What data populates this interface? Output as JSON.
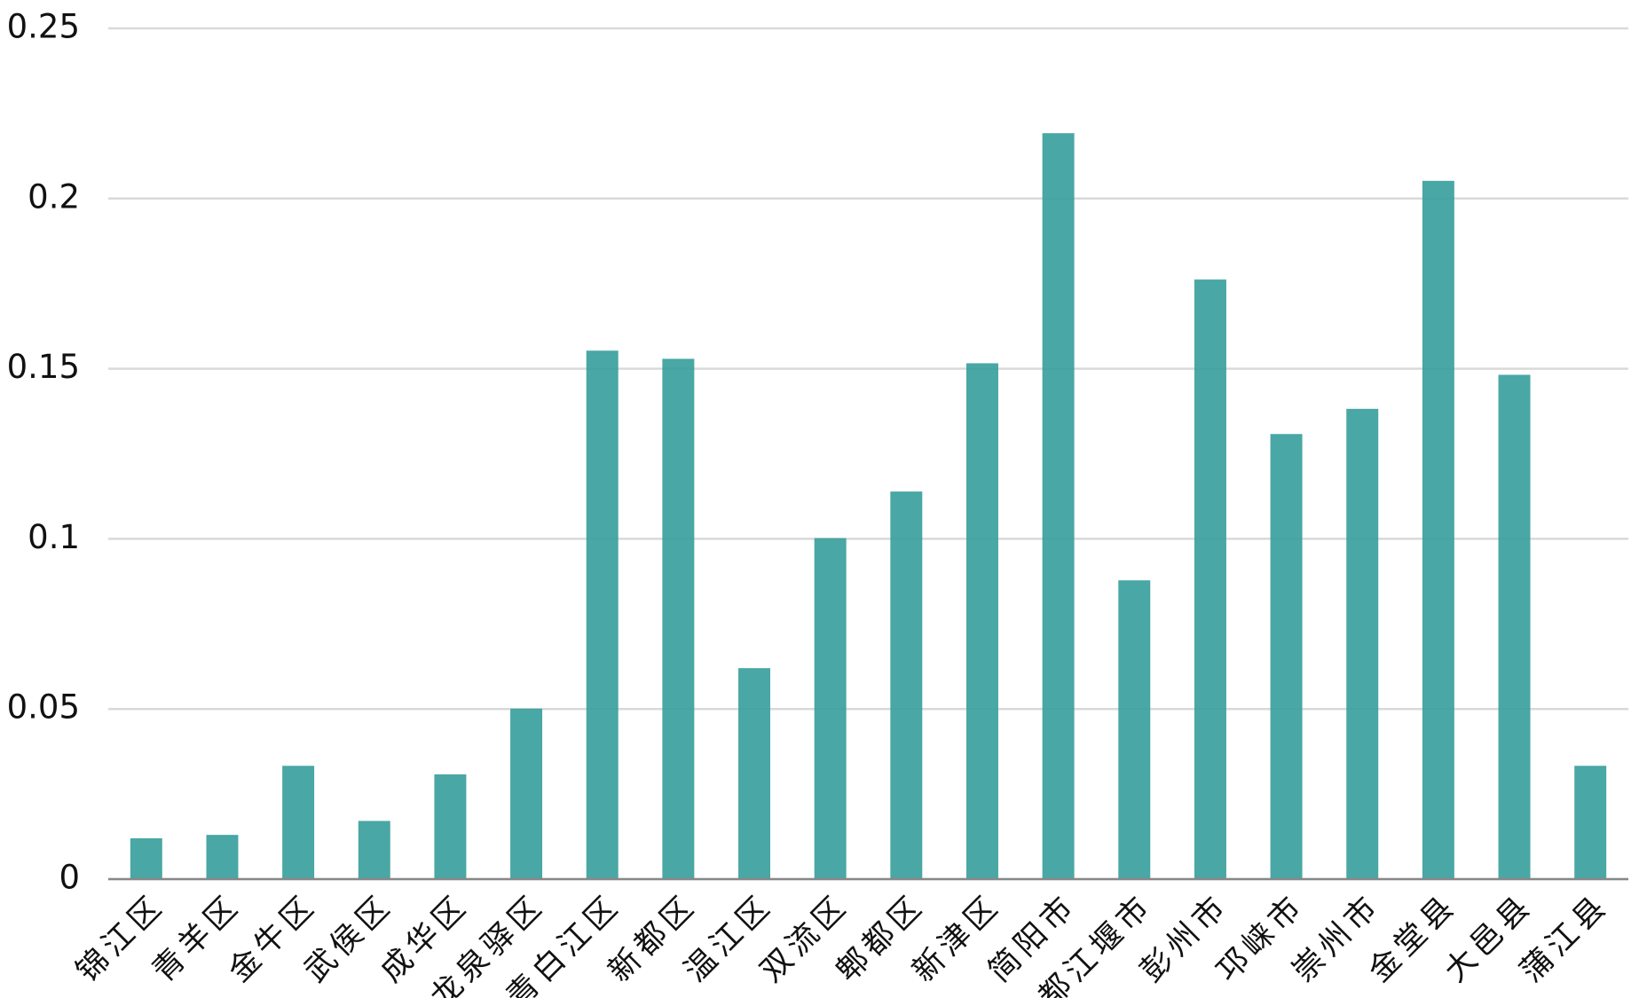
{
  "chart_data": {
    "type": "bar",
    "categories": [
      "锦江区",
      "青羊区",
      "金牛区",
      "武侯区",
      "成华区",
      "龙泉驿区",
      "青白江区",
      "新都区",
      "温江区",
      "双流区",
      "郫都区",
      "新津区",
      "简阳市",
      "都江堰市",
      "彭州市",
      "邛崃市",
      "崇州市",
      "金堂县",
      "大邑县",
      "蒲江县"
    ],
    "values": [
      0.012,
      0.013,
      0.0333,
      0.0171,
      0.0308,
      0.0501,
      0.1553,
      0.1529,
      0.062,
      0.1002,
      0.1139,
      0.1516,
      0.2192,
      0.0878,
      0.1762,
      0.1308,
      0.1382,
      0.2052,
      0.1482,
      0.0333
    ],
    "color": "#3aa09d",
    "ylim": [
      0,
      0.25
    ],
    "yticks": [
      0,
      0.05,
      0.1,
      0.15,
      0.2,
      0.25
    ],
    "grid": true
  }
}
